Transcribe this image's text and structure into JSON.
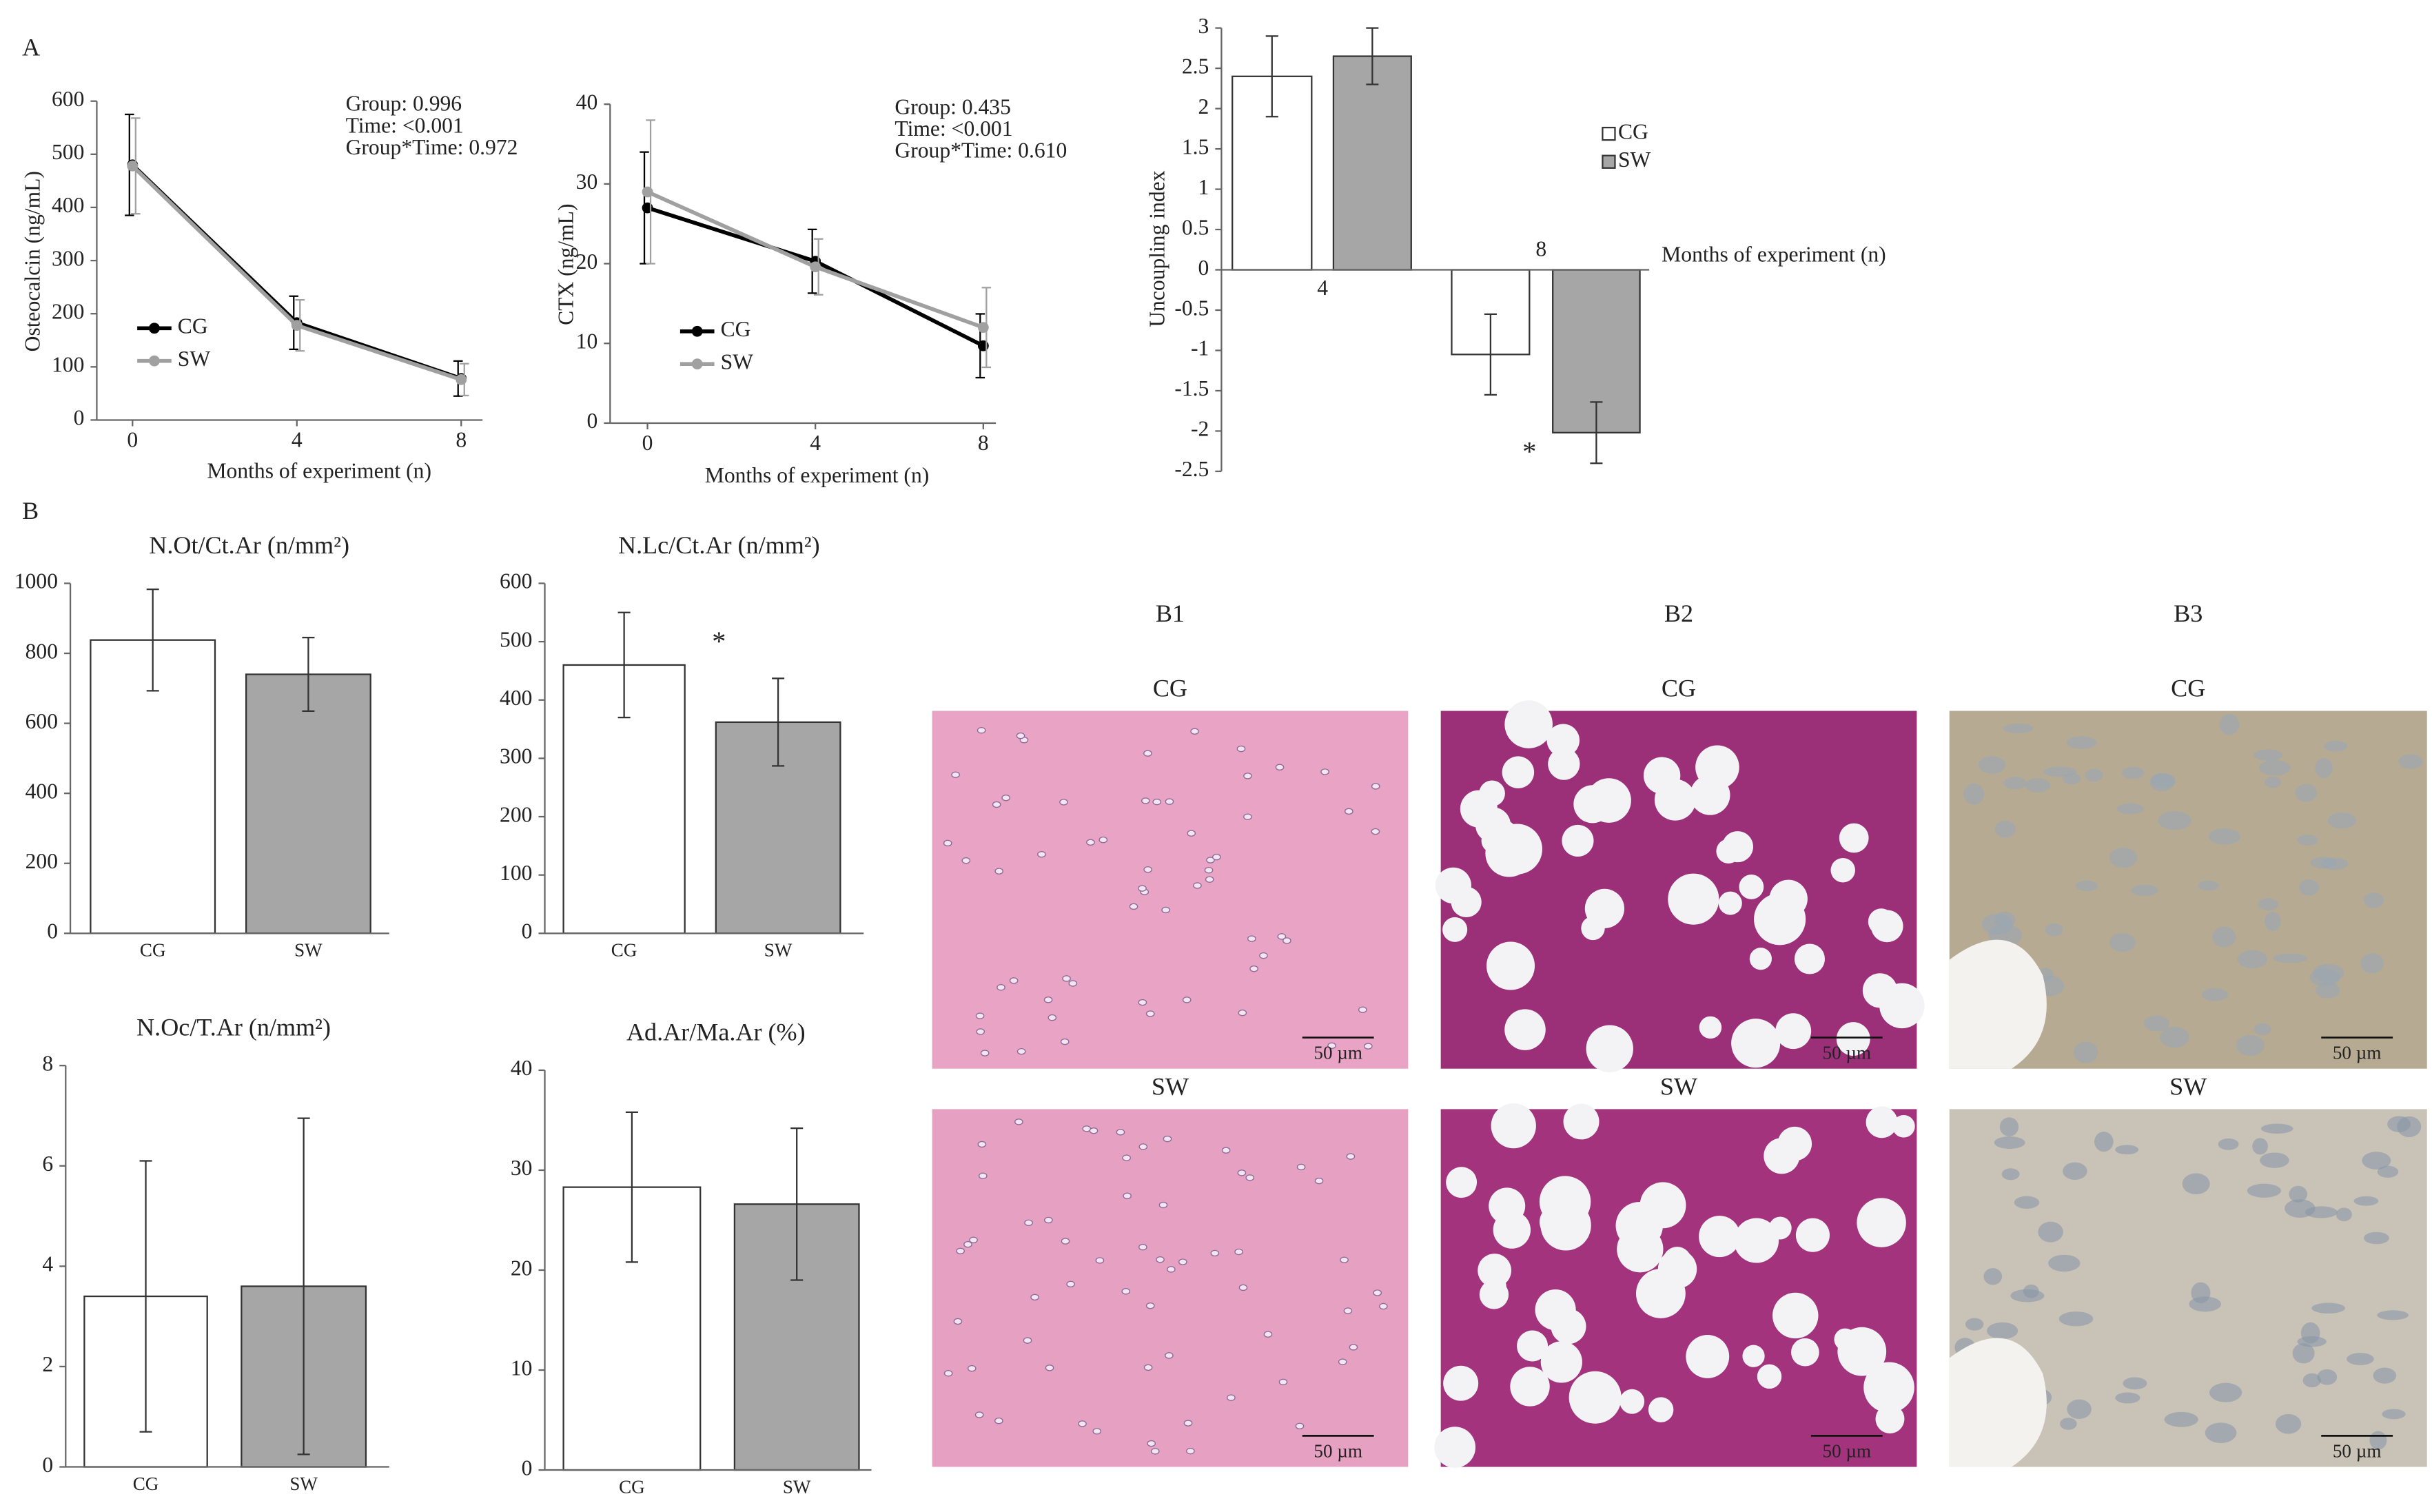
{
  "figure": {
    "panel_labels": [
      "A",
      "B"
    ],
    "scale_bar": "50 µm",
    "micrographs": [
      {
        "label": "B1",
        "groups": [
          "CG",
          "SW"
        ]
      },
      {
        "label": "B2",
        "groups": [
          "CG",
          "SW"
        ]
      },
      {
        "label": "B3",
        "groups": [
          "CG",
          "SW"
        ]
      }
    ]
  },
  "chart_data": [
    {
      "type": "line",
      "y_label": "Osteocalcin (ng/mL)",
      "x_label": "Months of experiment (n)",
      "annotations": [
        "Group: 0.996",
        "Time: <0.001",
        "Group*Time: 0.972"
      ],
      "x": [
        0,
        4,
        8
      ],
      "xlim": [
        -0.87,
        8.52
      ],
      "xticks": [
        0,
        4,
        8
      ],
      "ylim": [
        0,
        600
      ],
      "yticks": [
        0,
        100,
        200,
        300,
        400,
        500,
        600
      ],
      "series": [
        {
          "name": "CG",
          "color": "#000000",
          "values": [
            480,
            183,
            78
          ],
          "errors": [
            95,
            50,
            33
          ]
        },
        {
          "name": "SW",
          "color": "#a0a0a0",
          "values": [
            478,
            178,
            76
          ],
          "errors": [
            90,
            48,
            30
          ]
        }
      ]
    },
    {
      "type": "line",
      "y_label": "CTX (ng/mL)",
      "x_label": "Months of experiment (n)",
      "annotations": [
        "Group: 0.435",
        "Time: <0.001",
        "Group*Time: 0.610"
      ],
      "x": [
        0,
        4,
        8
      ],
      "xlim": [
        -0.89,
        8.3
      ],
      "xticks": [
        0,
        4,
        8
      ],
      "ylim": [
        0,
        40
      ],
      "yticks": [
        0,
        10,
        20,
        30,
        40
      ],
      "series": [
        {
          "name": "CG",
          "color": "#000000",
          "values": [
            27,
            20.3,
            9.7
          ],
          "errors": [
            7,
            4,
            4
          ]
        },
        {
          "name": "SW",
          "color": "#a0a0a0",
          "values": [
            29,
            19.6,
            12
          ],
          "errors": [
            9,
            3.5,
            5
          ]
        }
      ]
    },
    {
      "type": "groupbar",
      "y_label": "Uncoupling index",
      "x_label": "Months of experiment (n)",
      "annotations": [
        "*"
      ],
      "categories": [
        "4",
        "8"
      ],
      "ylim": [
        -2.5,
        3
      ],
      "yticks": [
        -2.5,
        -2,
        -1.5,
        -1,
        -0.5,
        0,
        0.5,
        1,
        1.5,
        2,
        2.5,
        3
      ],
      "series": [
        {
          "name": "CG",
          "color": "#ffffff",
          "values": [
            2.4,
            -1.05
          ],
          "errors": [
            0.5,
            0.5
          ]
        },
        {
          "name": "SW",
          "color": "#a6a6a6",
          "values": [
            2.65,
            -2.02
          ],
          "errors": [
            0.35,
            0.38
          ]
        }
      ]
    },
    {
      "type": "bar",
      "title": "N.Ot/Ct.Ar (n/mm²)",
      "categories": [
        "CG",
        "SW"
      ],
      "colors": [
        "#ffffff",
        "#a6a6a6"
      ],
      "values": [
        838,
        740
      ],
      "errors": [
        145,
        105
      ],
      "ylim": [
        0,
        1000
      ],
      "yticks": [
        0,
        200,
        400,
        600,
        800,
        1000
      ]
    },
    {
      "type": "bar",
      "title": "N.Lc/Ct.Ar (n/mm²)",
      "categories": [
        "CG",
        "SW"
      ],
      "colors": [
        "#ffffff",
        "#a6a6a6"
      ],
      "annotations": [
        "*"
      ],
      "values": [
        460,
        362
      ],
      "errors": [
        90,
        75
      ],
      "ylim": [
        0,
        600
      ],
      "yticks": [
        0,
        100,
        200,
        300,
        400,
        500,
        600
      ]
    },
    {
      "type": "bar",
      "title": "N.Oc/T.Ar (n/mm²)",
      "categories": [
        "CG",
        "SW"
      ],
      "colors": [
        "#ffffff",
        "#a6a6a6"
      ],
      "values": [
        3.4,
        3.6
      ],
      "errors": [
        2.7,
        3.35
      ],
      "ylim": [
        0,
        8
      ],
      "yticks": [
        0,
        2,
        4,
        6,
        8
      ]
    },
    {
      "type": "bar",
      "title": "Ad.Ar/Ma.Ar (%)",
      "categories": [
        "CG",
        "SW"
      ],
      "colors": [
        "#ffffff",
        "#a6a6a6"
      ],
      "values": [
        28.3,
        26.6
      ],
      "errors": [
        7.5,
        7.6
      ],
      "ylim": [
        0,
        40
      ],
      "yticks": [
        0,
        10,
        20,
        30,
        40
      ]
    }
  ]
}
